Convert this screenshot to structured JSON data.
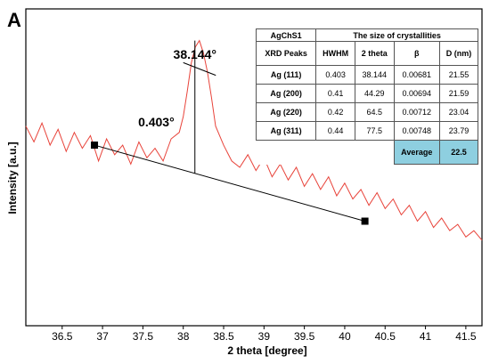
{
  "chart_data": {
    "type": "line",
    "panel_label": "A",
    "title": "",
    "xlabel": "2 theta [degree]",
    "ylabel": "Intensity [a.u.]",
    "xlim": [
      36.05,
      41.7
    ],
    "ylim": [
      0,
      100
    ],
    "x_ticks": [
      "36.5",
      "37",
      "37.5",
      "38",
      "38.5",
      "39",
      "39.5",
      "40",
      "40.5",
      "41",
      "41.5"
    ],
    "y_ticks_shown": false,
    "grid": false,
    "legend": "none",
    "line_color": "#e8433a",
    "series": [
      {
        "x": [
          36.05,
          36.15,
          36.25,
          36.35,
          36.45,
          36.55,
          36.65,
          36.75,
          36.85,
          36.95,
          37.05,
          37.15,
          37.25,
          37.35,
          37.45,
          37.55,
          37.65,
          37.75,
          37.85,
          37.95,
          38.0,
          38.05,
          38.1,
          38.15,
          38.2,
          38.25,
          38.3,
          38.35,
          38.4,
          38.5,
          38.6,
          38.7,
          38.8,
          38.9,
          39.0,
          39.1,
          39.2,
          39.3,
          39.4,
          39.5,
          39.6,
          39.7,
          39.8,
          39.9,
          40.0,
          40.1,
          40.2,
          40.3,
          40.4,
          40.5,
          40.6,
          40.7,
          40.8,
          40.9,
          41.0,
          41.1,
          41.2,
          41.3,
          41.4,
          41.5,
          41.6,
          41.7
        ],
        "y": [
          63,
          58,
          64,
          57,
          62,
          55,
          61,
          56,
          60,
          52,
          59,
          54,
          57,
          51,
          58,
          53,
          56,
          52,
          59,
          61,
          66,
          74,
          83,
          88,
          90,
          86,
          80,
          72,
          63,
          57,
          52,
          50,
          54,
          49,
          53,
          47,
          51,
          46,
          50,
          44,
          48,
          43,
          47,
          41,
          45,
          40,
          43,
          38,
          42,
          37,
          40,
          35,
          38,
          33,
          36,
          31,
          34,
          30,
          32,
          28,
          30,
          27
        ]
      }
    ],
    "baseline": {
      "x": [
        36.9,
        40.25
      ],
      "y": [
        57,
        33
      ]
    },
    "annotations": {
      "peak_label": "38.144°",
      "width_label": "0.403°",
      "peak_x": 38.144,
      "peak_y": 90,
      "fwhm_x": [
        38.0,
        38.403
      ]
    }
  },
  "table": {
    "sample": "AgChS1",
    "group_header": "The size of crystallities",
    "columns": [
      "XRD Peaks",
      "HWHM",
      "2 theta",
      "β",
      "D (nm)"
    ],
    "rows": [
      [
        "Ag (111)",
        "0.403",
        "38.144",
        "0.00681",
        "21.55"
      ],
      [
        "Ag (200)",
        "0.41",
        "44.29",
        "0.00694",
        "21.59"
      ],
      [
        "Ag (220)",
        "0.42",
        "64.5",
        "0.00712",
        "23.04"
      ],
      [
        "Ag (311)",
        "0.44",
        "77.5",
        "0.00748",
        "23.79"
      ]
    ],
    "average_label": "Average",
    "average_value": "22.5",
    "average_color": "#8ecfe0"
  }
}
